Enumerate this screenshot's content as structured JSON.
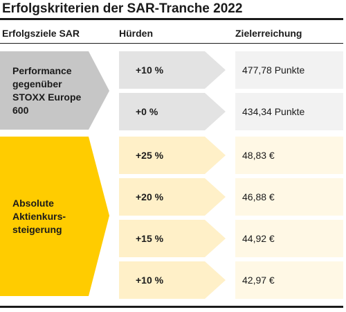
{
  "title": "Erfolgskriterien der SAR-Tranche 2022",
  "columns": {
    "goals": "Erfolgsziele SAR",
    "hurdles": "Hürden",
    "achievement": "Zielerreichung"
  },
  "groups": [
    {
      "label": "Performance\ngegenüber\nSTOXX Europe\n600",
      "color": "#c6c6c6",
      "row_color": "#e3e3e3",
      "cell_color": "#f2f2f2",
      "rows": [
        {
          "hurdle": "+10 %",
          "achievement": "477,78 Punkte"
        },
        {
          "hurdle": "+0 %",
          "achievement": "434,34 Punkte"
        }
      ]
    },
    {
      "label": "Absolute\nAktienkurs-\nsteigerung",
      "color": "#ffcc00",
      "row_color": "#fff0c8",
      "cell_color": "#fff8e5",
      "rows": [
        {
          "hurdle": "+25 %",
          "achievement": "48,83 €"
        },
        {
          "hurdle": "+20 %",
          "achievement": "46,88 €"
        },
        {
          "hurdle": "+15 %",
          "achievement": "44,92 €"
        },
        {
          "hurdle": "+10 %",
          "achievement": "42,97 €"
        }
      ]
    }
  ]
}
